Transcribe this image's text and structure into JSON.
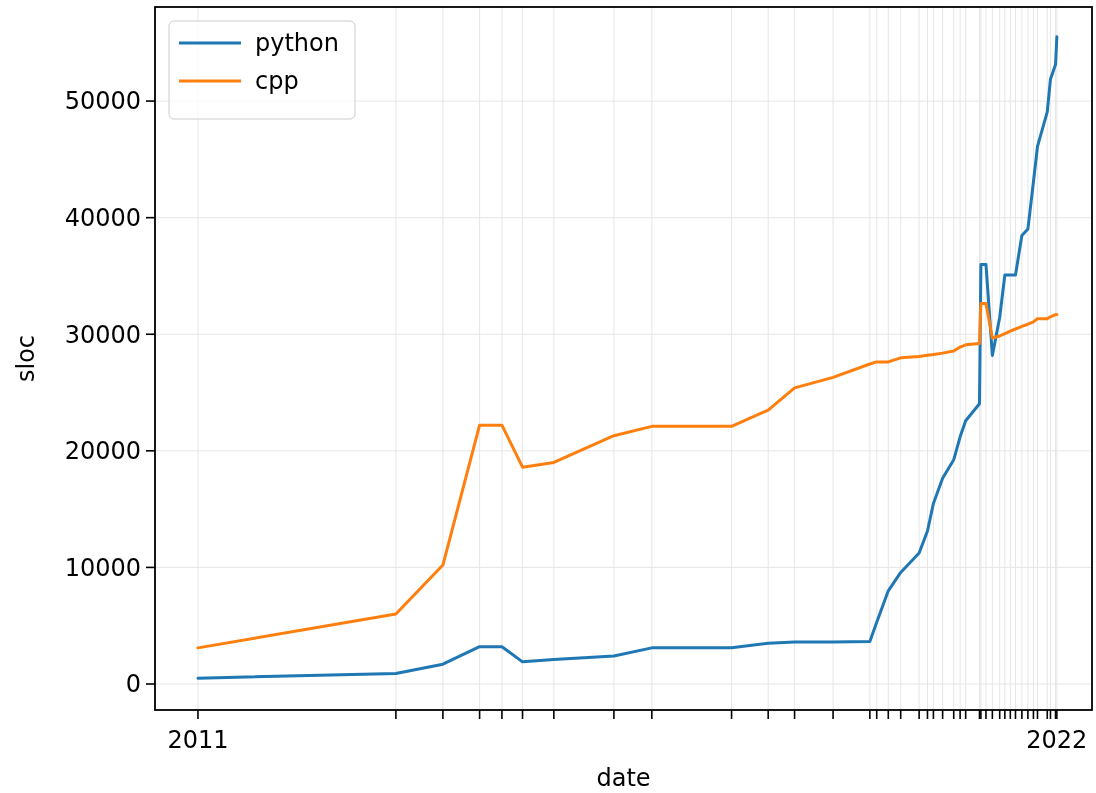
{
  "chart_data": {
    "type": "line",
    "xlabel": "date",
    "ylabel": "sloc",
    "x": [
      2011,
      2013.535,
      2014.137,
      2014.607,
      2014.893,
      2015.157,
      2015.558,
      2016.327,
      2016.813,
      2017.834,
      2018.303,
      2018.641,
      2019.134,
      2019.605,
      2019.693,
      2019.841,
      2020.0,
      2020.236,
      2020.343,
      2020.419,
      2020.537,
      2020.679,
      2020.761,
      2020.832,
      2021.009,
      2021.027,
      2021.092,
      2021.174,
      2021.268,
      2021.334,
      2021.404,
      2021.47,
      2021.552,
      2021.629,
      2021.7,
      2021.752,
      2021.877,
      2021.918,
      2021.983,
      2022
    ],
    "series": [
      {
        "name": "python",
        "color": "#1f77b4",
        "values": [
          500,
          900,
          1700,
          3200,
          3200,
          1900,
          2100,
          2400,
          3100,
          3100,
          3500,
          3600,
          3600,
          3650,
          5300,
          7990,
          9570,
          11230,
          13120,
          15490,
          17650,
          19230,
          21200,
          22580,
          24040,
          35990,
          35990,
          28180,
          31460,
          35090,
          35090,
          35090,
          38470,
          39020,
          43080,
          46120,
          49080,
          51880,
          53140,
          55510
        ]
      },
      {
        "name": "cpp",
        "color": "#ff7f0e",
        "values": [
          3100,
          6000,
          10200,
          22200,
          22200,
          18600,
          19000,
          21300,
          22100,
          22100,
          23500,
          25400,
          26300,
          27450,
          27630,
          27630,
          27980,
          28100,
          28200,
          28260,
          28380,
          28570,
          28900,
          29090,
          29210,
          32640,
          32640,
          29680,
          29850,
          30050,
          30270,
          30450,
          30670,
          30860,
          31060,
          31340,
          31340,
          31500,
          31690,
          31690
        ]
      }
    ],
    "xlim": [
      2010.45,
      2022.45
    ],
    "xticks": [
      {
        "value": 2011,
        "label": "2011"
      },
      {
        "value": 2013.535,
        "label": null
      },
      {
        "value": 2014.137,
        "label": null
      },
      {
        "value": 2014.607,
        "label": null
      },
      {
        "value": 2014.893,
        "label": null
      },
      {
        "value": 2015.157,
        "label": null
      },
      {
        "value": 2015.558,
        "label": null
      },
      {
        "value": 2016.327,
        "label": null
      },
      {
        "value": 2016.813,
        "label": null
      },
      {
        "value": 2017.834,
        "label": null
      },
      {
        "value": 2018.303,
        "label": null
      },
      {
        "value": 2018.641,
        "label": null
      },
      {
        "value": 2019.134,
        "label": null
      },
      {
        "value": 2019.605,
        "label": null
      },
      {
        "value": 2019.693,
        "label": null
      },
      {
        "value": 2019.841,
        "label": null
      },
      {
        "value": 2020.0,
        "label": null
      },
      {
        "value": 2020.236,
        "label": null
      },
      {
        "value": 2020.343,
        "label": null
      },
      {
        "value": 2020.419,
        "label": null
      },
      {
        "value": 2020.537,
        "label": null
      },
      {
        "value": 2020.679,
        "label": null
      },
      {
        "value": 2020.761,
        "label": null
      },
      {
        "value": 2020.832,
        "label": null
      },
      {
        "value": 2021.009,
        "label": null
      },
      {
        "value": 2021.027,
        "label": null
      },
      {
        "value": 2021.092,
        "label": null
      },
      {
        "value": 2021.174,
        "label": null
      },
      {
        "value": 2021.268,
        "label": null
      },
      {
        "value": 2021.334,
        "label": null
      },
      {
        "value": 2021.404,
        "label": null
      },
      {
        "value": 2021.47,
        "label": null
      },
      {
        "value": 2021.552,
        "label": null
      },
      {
        "value": 2021.629,
        "label": null
      },
      {
        "value": 2021.7,
        "label": null
      },
      {
        "value": 2021.752,
        "label": null
      },
      {
        "value": 2021.877,
        "label": null
      },
      {
        "value": 2021.918,
        "label": null
      },
      {
        "value": 2021.983,
        "label": null
      },
      {
        "value": 2022,
        "label": "2022"
      }
    ],
    "ylim": [
      -2230,
      58070
    ],
    "yticks": [
      0,
      10000,
      20000,
      30000,
      40000,
      50000
    ],
    "grid": true,
    "legend": "top left",
    "marker": "none",
    "line_style": "solid"
  }
}
